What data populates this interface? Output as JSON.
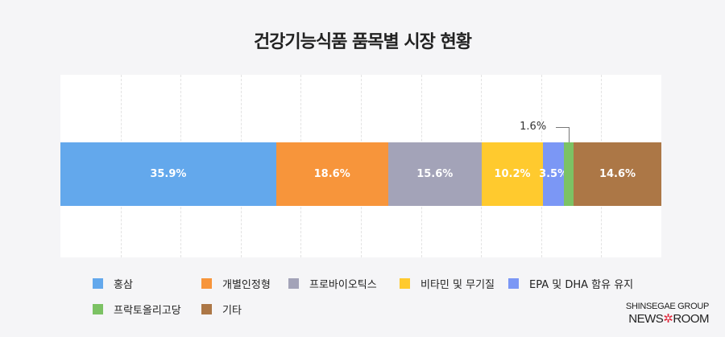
{
  "chart_data": {
    "type": "bar",
    "orientation": "horizontal-stacked-100",
    "title": "건강기능식품 품목별 시장 현황",
    "categories": [
      "홍삼",
      "개별인정형",
      "프로바이오틱스",
      "비타민 및 무기질",
      "EPA 및 DHA 함유 유지",
      "프락토올리고당",
      "기타"
    ],
    "values": [
      35.9,
      18.6,
      15.6,
      10.2,
      3.5,
      1.6,
      14.6
    ],
    "labels": [
      "35.9%",
      "18.6%",
      "15.6%",
      "10.2%",
      "3.5%",
      "1.6%",
      "14.6%"
    ],
    "colors": [
      "#63a8ec",
      "#f7953b",
      "#a3a3b8",
      "#ffca2e",
      "#7b97f5",
      "#7cc264",
      "#ac7746"
    ],
    "xlim": [
      0,
      100
    ],
    "grid": true,
    "legend_position": "bottom"
  },
  "brand": {
    "group": "SHINSEGAE GROUP",
    "news": "NEWS",
    "room": "ROOM"
  }
}
